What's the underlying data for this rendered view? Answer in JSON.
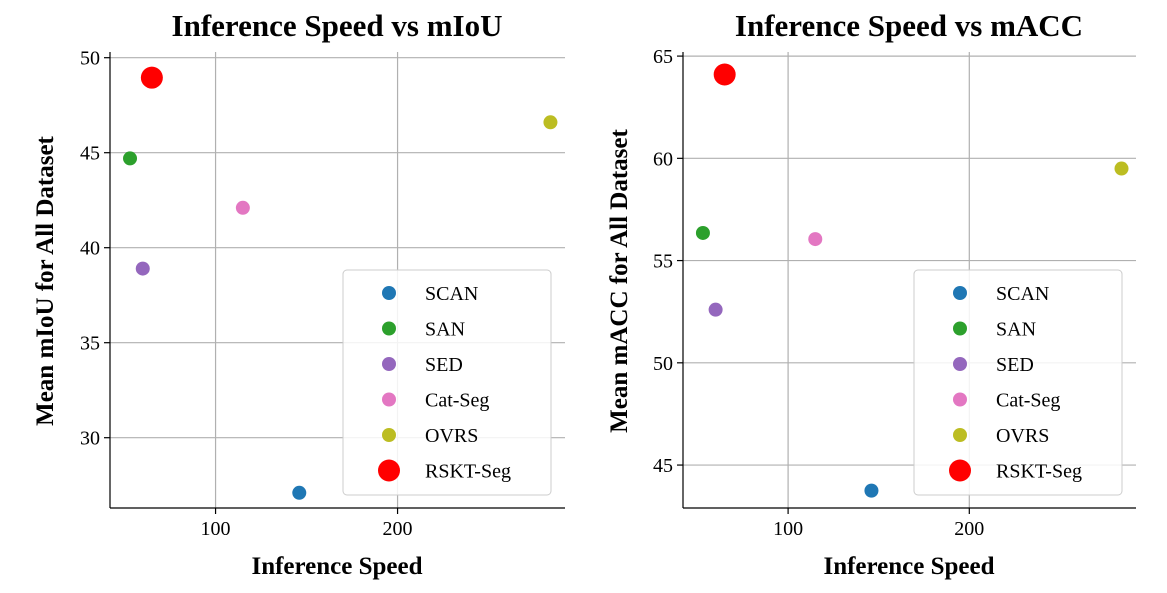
{
  "chart_data": [
    {
      "type": "scatter",
      "title": "Inference Speed vs mIoU",
      "xlabel": "Inference Speed",
      "ylabel": "Mean mIoU for All Dataset",
      "xlim": [
        42,
        292
      ],
      "ylim": [
        26.3,
        50.3
      ],
      "xticks": [
        100,
        200
      ],
      "yticks": [
        30,
        35,
        40,
        45,
        50
      ],
      "grid": true,
      "legend_position": "lower-right",
      "series": [
        {
          "name": "SCAN",
          "x": 146,
          "y": 27.1,
          "color": "#1f77b4",
          "size": "normal"
        },
        {
          "name": "SAN",
          "x": 53,
          "y": 44.7,
          "color": "#2ca02c",
          "size": "normal"
        },
        {
          "name": "SED",
          "x": 60,
          "y": 38.9,
          "color": "#9467bd",
          "size": "normal"
        },
        {
          "name": "Cat-Seg",
          "x": 115,
          "y": 42.1,
          "color": "#e377c2",
          "size": "normal"
        },
        {
          "name": "OVRS",
          "x": 284,
          "y": 46.6,
          "color": "#bcbd22",
          "size": "normal"
        },
        {
          "name": "RSKT-Seg",
          "x": 65,
          "y": 48.95,
          "color": "#ff0000",
          "size": "large"
        }
      ]
    },
    {
      "type": "scatter",
      "title": "Inference Speed vs mACC",
      "xlabel": "Inference Speed",
      "ylabel": "Mean mACC for All Dataset",
      "xlim": [
        42,
        292
      ],
      "ylim": [
        42.9,
        65.2
      ],
      "xticks": [
        100,
        200
      ],
      "yticks": [
        45,
        50,
        55,
        60,
        65
      ],
      "grid": true,
      "legend_position": "lower-right",
      "series": [
        {
          "name": "SCAN",
          "x": 146,
          "y": 43.75,
          "color": "#1f77b4",
          "size": "normal"
        },
        {
          "name": "SAN",
          "x": 53,
          "y": 56.35,
          "color": "#2ca02c",
          "size": "normal"
        },
        {
          "name": "SED",
          "x": 60,
          "y": 52.6,
          "color": "#9467bd",
          "size": "normal"
        },
        {
          "name": "Cat-Seg",
          "x": 115,
          "y": 56.05,
          "color": "#e377c2",
          "size": "normal"
        },
        {
          "name": "OVRS",
          "x": 284,
          "y": 59.5,
          "color": "#bcbd22",
          "size": "normal"
        },
        {
          "name": "RSKT-Seg",
          "x": 65,
          "y": 64.1,
          "color": "#ff0000",
          "size": "large"
        }
      ]
    }
  ]
}
